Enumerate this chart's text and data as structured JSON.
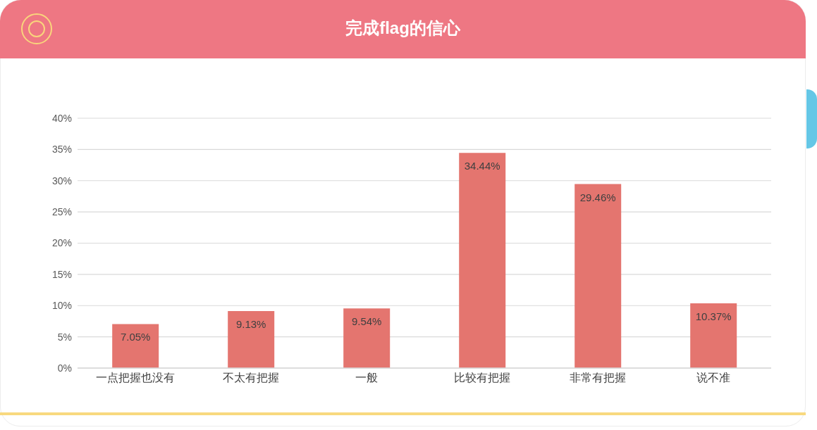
{
  "chart_data": {
    "type": "bar",
    "title": "完成flag的信心",
    "categories": [
      "一点把握也没有",
      "不太有把握",
      "一般",
      "比较有把握",
      "非常有把握",
      "说不准"
    ],
    "values": [
      7.05,
      9.13,
      9.54,
      34.44,
      29.46,
      10.37
    ],
    "color": "#e4756f",
    "value_labels": [
      "7.05%",
      "9.13%",
      "9.54%",
      "34.44%",
      "29.46%",
      "10.37%"
    ],
    "ylim": [
      0,
      40
    ],
    "yticks": [
      {
        "value": 0,
        "label": "0%"
      },
      {
        "value": 5,
        "label": "5%"
      },
      {
        "value": 10,
        "label": "10%"
      },
      {
        "value": 15,
        "label": "15%"
      },
      {
        "value": 20,
        "label": "20%"
      },
      {
        "value": 25,
        "label": "25%"
      },
      {
        "value": 30,
        "label": "30%"
      },
      {
        "value": 35,
        "label": "35%"
      },
      {
        "value": 40,
        "label": "40%"
      }
    ],
    "grid": "y"
  }
}
